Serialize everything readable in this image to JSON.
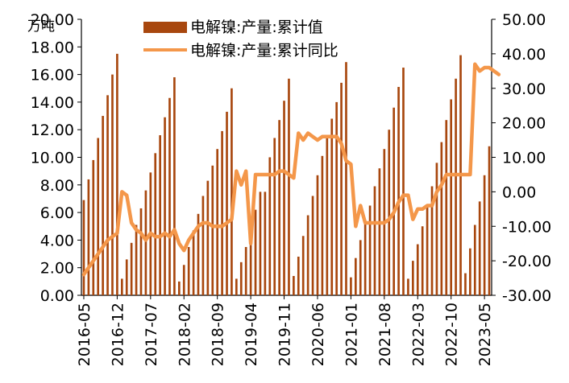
{
  "chart_data": {
    "type": "bar",
    "title": "",
    "unit_label": "万吨",
    "x_ticks": [
      "2016-05",
      "2016-12",
      "2017-07",
      "2018-02",
      "2018-09",
      "2019-04",
      "2019-11",
      "2020-06",
      "2021-01",
      "2021-08",
      "2022-03",
      "2022-10",
      "2023-05"
    ],
    "y_left": {
      "min": 0,
      "max": 20,
      "step": 2,
      "tick_labels": [
        "0.00",
        "2.00",
        "4.00",
        "6.00",
        "8.00",
        "10.00",
        "12.00",
        "14.00",
        "16.00",
        "18.00",
        "20.00"
      ]
    },
    "y_right": {
      "min": -30,
      "max": 50,
      "step": 10,
      "tick_labels": [
        "-30.00",
        "-20.00",
        "-10.00",
        "0.00",
        "10.00",
        "20.00",
        "30.00",
        "40.00",
        "50.00"
      ]
    },
    "legend_position": "top",
    "colors": {
      "bars": "#a8470e",
      "line": "#f4974a"
    },
    "series": [
      {
        "name": "电解镍:产量:累计值",
        "kind": "bar",
        "axis": "left",
        "values": [
          6.9,
          8.4,
          9.8,
          11.4,
          13.0,
          14.5,
          16.0,
          17.5,
          1.2,
          2.6,
          3.8,
          5.1,
          6.3,
          7.6,
          8.9,
          10.3,
          11.6,
          12.9,
          14.3,
          15.8,
          1.0,
          2.2,
          3.5,
          4.7,
          5.9,
          7.2,
          8.3,
          9.4,
          10.6,
          11.9,
          13.3,
          15.0,
          1.2,
          2.4,
          3.5,
          5.0,
          6.2,
          7.5,
          7.5,
          10.0,
          11.4,
          12.7,
          14.1,
          15.7,
          1.4,
          2.8,
          4.3,
          5.8,
          7.2,
          8.7,
          10.1,
          11.4,
          12.8,
          14.0,
          15.4,
          16.9,
          1.3,
          2.7,
          4.0,
          5.3,
          6.5,
          7.9,
          9.2,
          10.6,
          12.0,
          13.6,
          15.1,
          16.5,
          1.2,
          2.5,
          3.7,
          5.0,
          6.4,
          7.9,
          9.6,
          11.1,
          12.7,
          14.2,
          15.7,
          17.4,
          1.6,
          3.4,
          5.1,
          6.8,
          8.7,
          10.8
        ]
      },
      {
        "name": "电解镍:产量:累计同比",
        "kind": "line",
        "axis": "right",
        "values": [
          -24,
          -22,
          -20,
          -18,
          -16,
          -14,
          -13,
          -12,
          0,
          -1,
          -9,
          -11,
          -12,
          -14,
          -12,
          -13,
          -13,
          -12,
          -13,
          -11,
          -15,
          -17,
          -14,
          -12,
          -10,
          -9,
          -9,
          -10,
          -10,
          -10,
          -9,
          -8,
          6,
          2,
          6,
          -15,
          5,
          5,
          5,
          5,
          5,
          6,
          6,
          5,
          4,
          17,
          15,
          17,
          16,
          15,
          16,
          16,
          16,
          16,
          14,
          9,
          8,
          -10,
          -4,
          -9,
          -9,
          -9,
          -9,
          -9,
          -8,
          -6,
          -3,
          -1,
          -1,
          -8,
          -5,
          -5,
          -4,
          -4,
          0,
          2,
          5,
          5,
          5,
          5,
          5,
          5,
          37,
          35,
          36,
          36,
          35,
          34
        ]
      }
    ]
  }
}
